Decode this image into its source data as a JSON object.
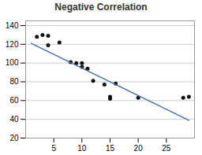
{
  "chart_data": {
    "type": "scatter",
    "title": "Negative Correlation",
    "series": [
      {
        "type": "scatter",
        "color": "#111111",
        "x": [
          2,
          3,
          4,
          4,
          6,
          8,
          9,
          10,
          10,
          11,
          12,
          14,
          15,
          15,
          16,
          20,
          28,
          29
        ],
        "values": [
          128,
          130,
          129,
          119,
          122,
          101,
          100,
          96,
          100,
          94,
          81,
          77,
          62,
          64,
          78,
          63,
          63,
          64
        ]
      },
      {
        "type": "line",
        "color": "#4472a8",
        "x": [
          1,
          29
        ],
        "values": [
          121,
          39
        ]
      }
    ],
    "xlim": [
      0,
      30
    ],
    "xticks": [
      5,
      10,
      15,
      20,
      25
    ],
    "ylim": [
      20,
      145
    ],
    "yticks": [
      20,
      40,
      60,
      80,
      100,
      120,
      140
    ],
    "grid": "y"
  }
}
